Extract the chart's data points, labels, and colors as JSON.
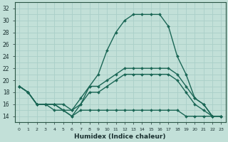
{
  "xlabel": "Humidex (Indice chaleur)",
  "xlim": [
    -0.5,
    23.5
  ],
  "ylim": [
    13.0,
    33.0
  ],
  "yticks": [
    14,
    16,
    18,
    20,
    22,
    24,
    26,
    28,
    30,
    32
  ],
  "xticks": [
    0,
    1,
    2,
    3,
    4,
    5,
    6,
    7,
    8,
    9,
    10,
    11,
    12,
    13,
    14,
    15,
    16,
    17,
    18,
    19,
    20,
    21,
    22,
    23
  ],
  "bg_color": "#c2e0d8",
  "grid_color": "#aacfc8",
  "line_color": "#1a6655",
  "line_width": 1.0,
  "marker": "D",
  "marker_size": 2.0,
  "series": {
    "line1_max": [
      19,
      18,
      16,
      16,
      16,
      15,
      14,
      16,
      19,
      21,
      25,
      28,
      30,
      31,
      31,
      31,
      31,
      29,
      24,
      21,
      17,
      16,
      14,
      14
    ],
    "line2_min": [
      19,
      18,
      16,
      16,
      15,
      15,
      14,
      15,
      15,
      15,
      15,
      15,
      15,
      15,
      15,
      15,
      15,
      15,
      15,
      14,
      14,
      14,
      14,
      14
    ],
    "line3_mean_upper": [
      19,
      18,
      16,
      16,
      16,
      16,
      15,
      17,
      19,
      19,
      20,
      21,
      22,
      22,
      22,
      22,
      22,
      22,
      21,
      19,
      17,
      16,
      14,
      14
    ],
    "line4_mean_lower": [
      19,
      18,
      16,
      16,
      16,
      15,
      15,
      16,
      18,
      18,
      19,
      20,
      21,
      21,
      21,
      21,
      21,
      21,
      20,
      18,
      16,
      15,
      14,
      14
    ]
  }
}
